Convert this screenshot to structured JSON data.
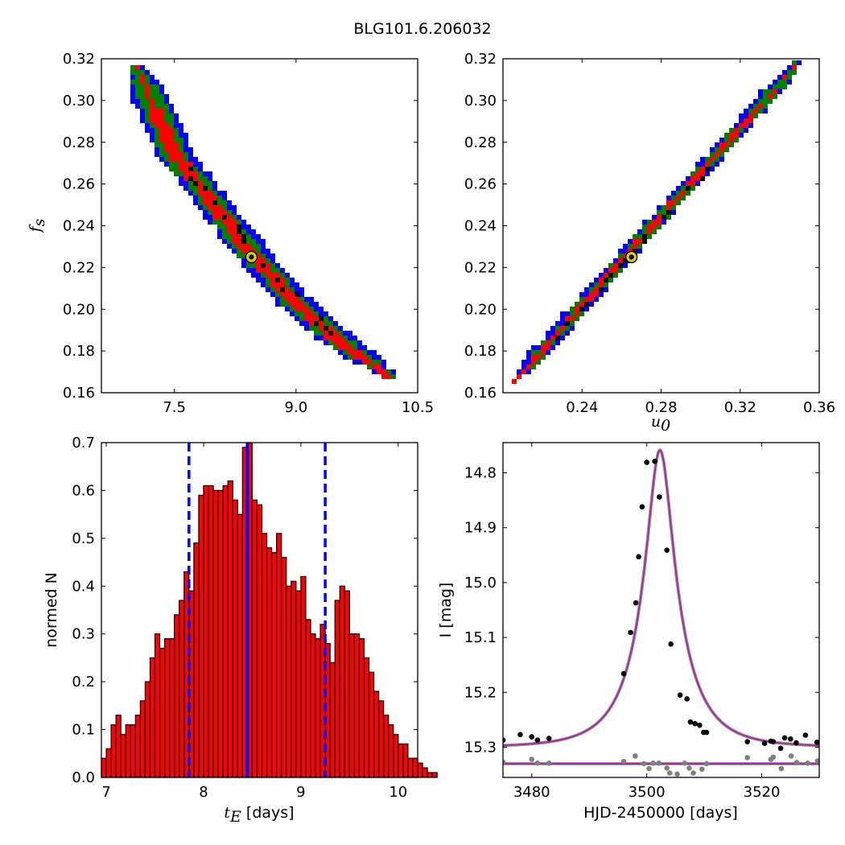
{
  "figure": {
    "title": "BLG101.6.206032"
  },
  "chart_data": [
    {
      "type": "scatter",
      "panel": "tE-vs-fs",
      "xlabel": "",
      "ylabel": "f_s",
      "ylabel_main": "f",
      "ylabel_sub": "s",
      "xlim": [
        6.6,
        10.5
      ],
      "ylim": [
        0.16,
        0.32
      ],
      "xticks": [
        7.5,
        9.0,
        10.5
      ],
      "xtick_labels": [
        "7.5",
        "9.0",
        "10.5"
      ],
      "yticks": [
        0.16,
        0.18,
        0.2,
        0.22,
        0.24,
        0.26,
        0.28,
        0.3,
        0.32
      ],
      "ytick_labels": [
        "0.16",
        "0.18",
        "0.20",
        "0.22",
        "0.24",
        "0.26",
        "0.28",
        "0.30",
        "0.32"
      ],
      "band_colors": {
        "outer": "#0000ff",
        "middle": "#007f00",
        "inner": "#ff0000",
        "core": "#000000"
      },
      "band_centerline": {
        "x": [
          7.1,
          7.5,
          8.0,
          8.5,
          9.0,
          9.5,
          10.0
        ],
        "y": [
          0.311,
          0.275,
          0.25,
          0.225,
          0.203,
          0.186,
          0.172
        ]
      },
      "best_fit": {
        "x": 8.45,
        "y": 0.225,
        "color": "#e5d400"
      }
    },
    {
      "type": "scatter",
      "panel": "u0-vs-fs",
      "xlabel": "u_0",
      "xlabel_main": "u",
      "xlabel_sub": "0",
      "ylabel": "",
      "xlim": [
        0.2,
        0.36
      ],
      "ylim": [
        0.16,
        0.32
      ],
      "xticks": [
        0.24,
        0.28,
        0.32,
        0.36
      ],
      "xtick_labels": [
        "0.24",
        "0.28",
        "0.32",
        "0.36"
      ],
      "yticks": [
        0.16,
        0.18,
        0.2,
        0.22,
        0.24,
        0.26,
        0.28,
        0.3,
        0.32
      ],
      "ytick_labels": [
        "0.16",
        "0.18",
        "0.20",
        "0.22",
        "0.24",
        "0.26",
        "0.28",
        "0.30",
        "0.32"
      ],
      "band_colors": {
        "outer": "#0000ff",
        "middle": "#007f00",
        "inner": "#ff0000",
        "core": "#000000"
      },
      "band_centerline": {
        "x": [
          0.211,
          0.344
        ],
        "y": [
          0.171,
          0.313
        ]
      },
      "best_fit": {
        "x": 0.265,
        "y": 0.225,
        "color": "#e5d400"
      }
    },
    {
      "type": "bar",
      "panel": "tE-histogram",
      "xlabel": "t_E [days]",
      "xlabel_main": "t",
      "xlabel_sub": "E",
      "xlabel_unit": "[days]",
      "ylabel": "normed N",
      "xlim": [
        6.95,
        10.2
      ],
      "ylim": [
        0.0,
        0.7
      ],
      "xticks": [
        7,
        8,
        9,
        10
      ],
      "xtick_labels": [
        "7",
        "8",
        "9",
        "10"
      ],
      "yticks": [
        0.0,
        0.1,
        0.2,
        0.3,
        0.4,
        0.5,
        0.6,
        0.7
      ],
      "ytick_labels": [
        "0.0",
        "0.1",
        "0.2",
        "0.3",
        "0.4",
        "0.5",
        "0.6",
        "0.7"
      ],
      "bin_start": 6.95,
      "bin_width": 0.05,
      "values": [
        0.04,
        0.06,
        0.11,
        0.13,
        0.09,
        0.11,
        0.11,
        0.13,
        0.16,
        0.2,
        0.25,
        0.3,
        0.27,
        0.29,
        0.29,
        0.34,
        0.37,
        0.43,
        0.39,
        0.49,
        0.59,
        0.61,
        0.61,
        0.6,
        0.6,
        0.61,
        0.62,
        0.58,
        0.55,
        0.69,
        0.71,
        0.58,
        0.57,
        0.51,
        0.48,
        0.47,
        0.51,
        0.46,
        0.4,
        0.41,
        0.39,
        0.42,
        0.33,
        0.3,
        0.29,
        0.32,
        0.28,
        0.24,
        0.37,
        0.4,
        0.39,
        0.3,
        0.3,
        0.29,
        0.25,
        0.22,
        0.18,
        0.16,
        0.13,
        0.11,
        0.09,
        0.07,
        0.07,
        0.04,
        0.04,
        0.03,
        0.02,
        0.01,
        0.01
      ],
      "bar_color": "#ff0000",
      "median_line": {
        "x": 8.45,
        "color": "#0000ff",
        "style": "solid"
      },
      "interval_lines": {
        "x": [
          7.85,
          9.25
        ],
        "color": "#0000ff",
        "style": "dashed"
      }
    },
    {
      "type": "line",
      "panel": "light-curve",
      "xlabel": "HJD-2450000 [days]",
      "ylabel": "I [mag]",
      "xlim": [
        3475,
        3530
      ],
      "ylim": [
        15.355,
        14.745
      ],
      "y_inverted": true,
      "xticks": [
        3480,
        3500,
        3520
      ],
      "xtick_labels": [
        "3480",
        "3500",
        "3520"
      ],
      "yticks": [
        14.8,
        14.9,
        15.0,
        15.1,
        15.2,
        15.3
      ],
      "ytick_labels": [
        "14.8",
        "14.9",
        "15.0",
        "15.1",
        "15.2",
        "15.3"
      ],
      "model_color": "#aa22aa",
      "model": {
        "t0": 3502.3,
        "tE": 8.45,
        "u0": 0.265,
        "fs": 0.225,
        "baseline": 15.3
      },
      "series": [
        {
          "name": "",
          "color": "#000000",
          "x": [
            3475,
            3478,
            3480,
            3481,
            3483,
            3496,
            3497.2,
            3498.1,
            3498.6,
            3499.2,
            3500.0,
            3501.4,
            3502.2,
            3503.5,
            3504.2,
            3505.8,
            3507.0,
            3507.6,
            3508.4,
            3509.2,
            3509.9,
            3510.4,
            3517.5,
            3520.5,
            3521.6,
            3522.0,
            3523.3,
            3524.0,
            3525.0,
            3526.0,
            3527.6,
            3529.6
          ],
          "y": [
            15.287,
            15.277,
            15.281,
            15.287,
            15.284,
            15.166,
            15.091,
            15.037,
            14.953,
            14.862,
            14.781,
            14.779,
            14.844,
            14.941,
            15.112,
            15.205,
            15.212,
            15.254,
            15.257,
            15.26,
            15.273,
            15.273,
            15.29,
            15.293,
            15.289,
            15.29,
            15.302,
            15.283,
            15.285,
            15.292,
            15.278,
            15.291
          ]
        },
        {
          "name": "",
          "color": "#808080",
          "x": [
            3475,
            3480,
            3481,
            3483,
            3496,
            3498.0,
            3499.5,
            3500.4,
            3501.1,
            3502.1,
            3503.5,
            3504.0,
            3505.3,
            3506.6,
            3507.4,
            3508.1,
            3509.6,
            3510.4,
            3517.5,
            3521.6,
            3522.0,
            3523.4,
            3525.1,
            3526.1,
            3528.0,
            3529.7
          ],
          "y": [
            15.327,
            15.322,
            15.329,
            15.329,
            15.326,
            15.316,
            15.33,
            15.339,
            15.329,
            15.329,
            15.338,
            15.347,
            15.349,
            15.329,
            15.338,
            15.347,
            15.34,
            15.33,
            15.319,
            15.322,
            15.318,
            15.339,
            15.316,
            15.328,
            15.329,
            15.325
          ]
        }
      ]
    }
  ]
}
